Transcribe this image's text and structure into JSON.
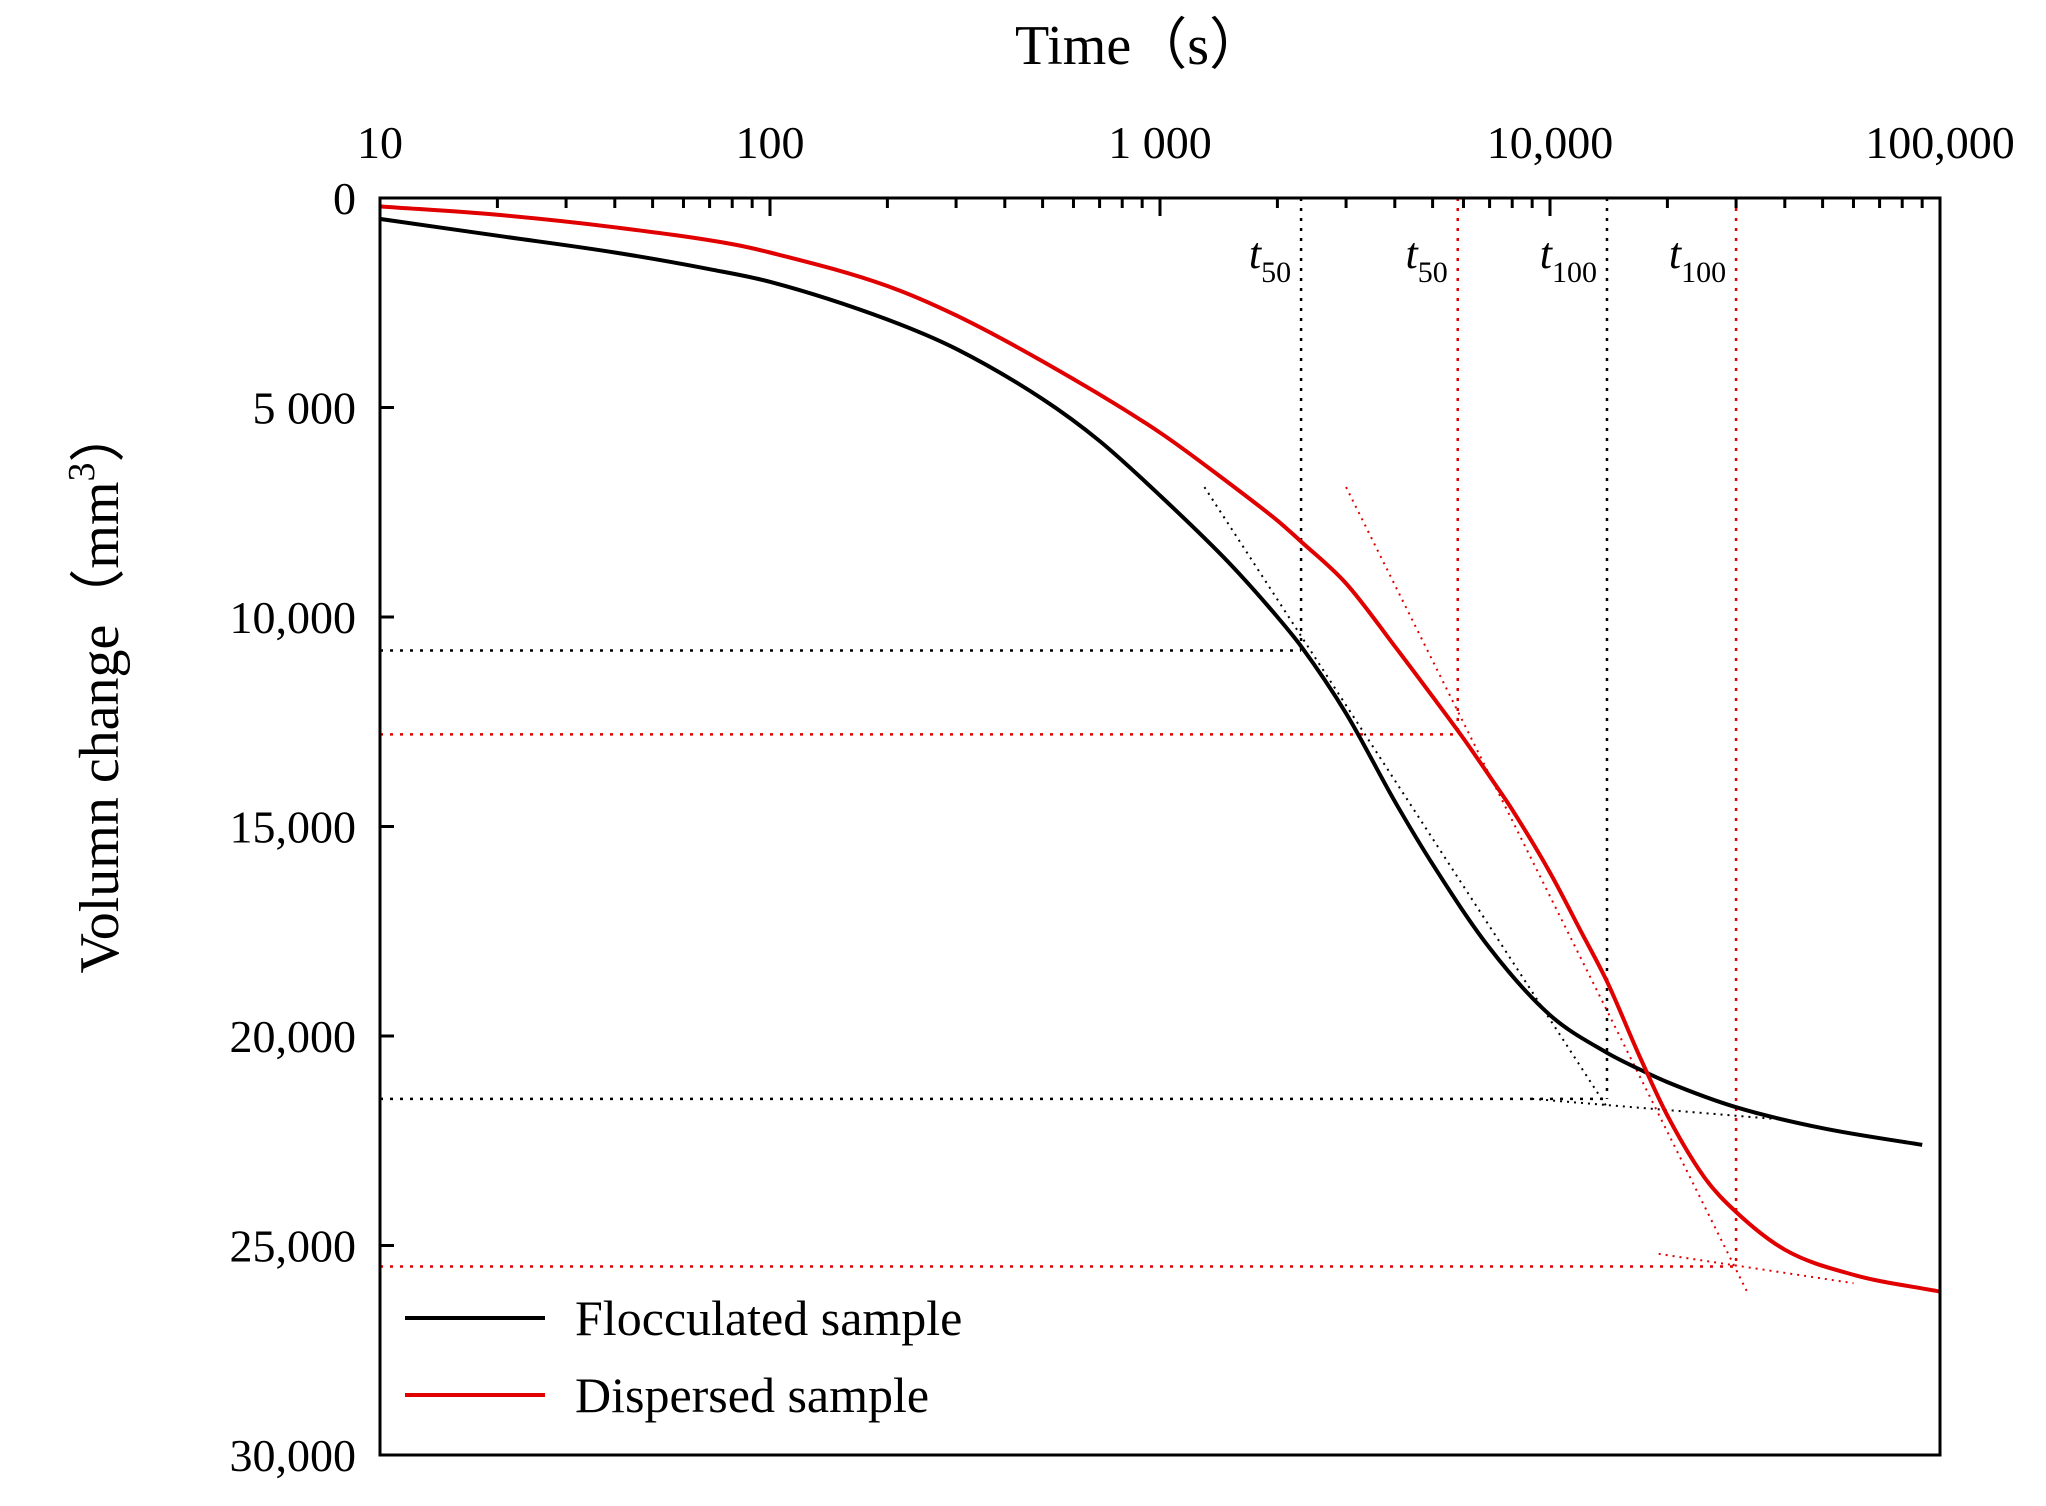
{
  "chart_data": {
    "type": "line",
    "xlabel": "Time（s）",
    "ylabel": "Volumn change（mm",
    "ylabel_sup": "3",
    "ylabel_close": "）",
    "x_scale": "log",
    "xlim": [
      10,
      100000
    ],
    "ylim": [
      0,
      30000
    ],
    "y_inverted": true,
    "x_axis_position": "top",
    "legend_position": "bottom-left",
    "x_tick_values": [
      10,
      100,
      1000,
      10000,
      100000
    ],
    "x_tick_labels": [
      "10",
      "100",
      "1 000",
      "10,000",
      "100,000"
    ],
    "y_tick_values": [
      0,
      5000,
      10000,
      15000,
      20000,
      25000,
      30000
    ],
    "y_tick_labels": [
      "0",
      "5 000",
      "10,000",
      "15,000",
      "20,000",
      "25,000",
      "30,000"
    ],
    "series": [
      {
        "name": "Flocculated sample",
        "color": "#000000",
        "x": [
          10,
          20,
          40,
          70,
          100,
          200,
          300,
          500,
          700,
          1000,
          1500,
          2000,
          2300,
          3000,
          4000,
          5000,
          7000,
          10000,
          14000,
          17000,
          20000,
          30000,
          50000,
          90000
        ],
        "y": [
          500,
          900,
          1300,
          1700,
          2000,
          2900,
          3600,
          4800,
          5800,
          7100,
          8700,
          10000,
          10700,
          12300,
          14400,
          15900,
          17900,
          19500,
          20400,
          20800,
          21100,
          21700,
          22200,
          22600
        ]
      },
      {
        "name": "Dispersed sample",
        "color": "#e00000",
        "x": [
          10,
          20,
          40,
          80,
          100,
          200,
          300,
          500,
          1000,
          1500,
          2000,
          2300,
          3000,
          4000,
          5000,
          6000,
          7000,
          8000,
          10000,
          12000,
          14000,
          17000,
          20000,
          25000,
          30000,
          40000,
          60000,
          100000
        ],
        "y": [
          200,
          400,
          700,
          1100,
          1300,
          2100,
          2800,
          3900,
          5600,
          6800,
          7700,
          8200,
          9200,
          10700,
          11900,
          12900,
          13800,
          14600,
          16100,
          17500,
          18700,
          20500,
          21900,
          23400,
          24200,
          25100,
          25700,
          26100
        ]
      }
    ],
    "annotations": [
      {
        "label": "t",
        "sub": "50",
        "x": 2300,
        "color": "#000000"
      },
      {
        "label": "t",
        "sub": "50",
        "x": 5800,
        "color": "#000000"
      },
      {
        "label": "t",
        "sub": "100",
        "x": 14000,
        "color": "#000000"
      },
      {
        "label": "t",
        "sub": "100",
        "x": 30000,
        "color": "#000000"
      }
    ],
    "reference_lines": {
      "flocculated": {
        "t50": 2300,
        "t100": 14000,
        "d50": 10800,
        "d100": 21500,
        "color": "#000000"
      },
      "dispersed": {
        "t50": 5800,
        "t100": 30000,
        "d50": 12800,
        "d100": 25500,
        "color": "#e00000"
      }
    },
    "tangent_lines": [
      {
        "color": "#000000",
        "points": [
          [
            1300,
            6900
          ],
          [
            14000,
            21700
          ]
        ]
      },
      {
        "color": "#000000",
        "points": [
          [
            9000,
            21500
          ],
          [
            40000,
            22000
          ]
        ]
      },
      {
        "color": "#e00000",
        "points": [
          [
            3000,
            6900
          ],
          [
            32000,
            26100
          ]
        ]
      },
      {
        "color": "#e00000",
        "points": [
          [
            19000,
            25200
          ],
          [
            60000,
            25900
          ]
        ]
      }
    ]
  }
}
